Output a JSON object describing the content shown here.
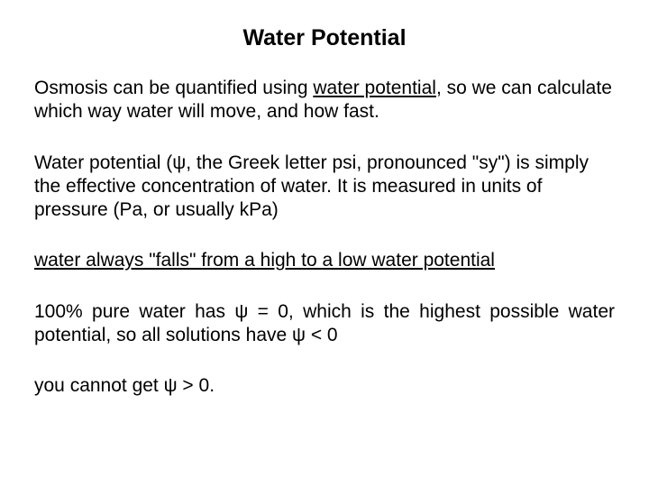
{
  "colors": {
    "background": "#ffffff",
    "text": "#000000"
  },
  "typography": {
    "family": "Arial",
    "title_fontsize": 25,
    "body_fontsize": 21,
    "title_weight": "bold"
  },
  "title": "Water Potential",
  "p1_a": "Osmosis can be quantified using ",
  "p1_u": "water potential",
  "p1_b": ", so we can calculate which way water will move, and how fast.",
  "p2": "Water potential (ψ, the Greek letter psi, pronounced \"sy\") is simply the effective concentration of water. It is measured in units of pressure (Pa, or usually kPa)",
  "p3": "water always \"falls\" from a high to a low water potential",
  "p4": "100% pure water has ψ = 0, which is the highest possible water potential, so all solutions have ψ < 0",
  "p5": "you cannot get ψ > 0."
}
